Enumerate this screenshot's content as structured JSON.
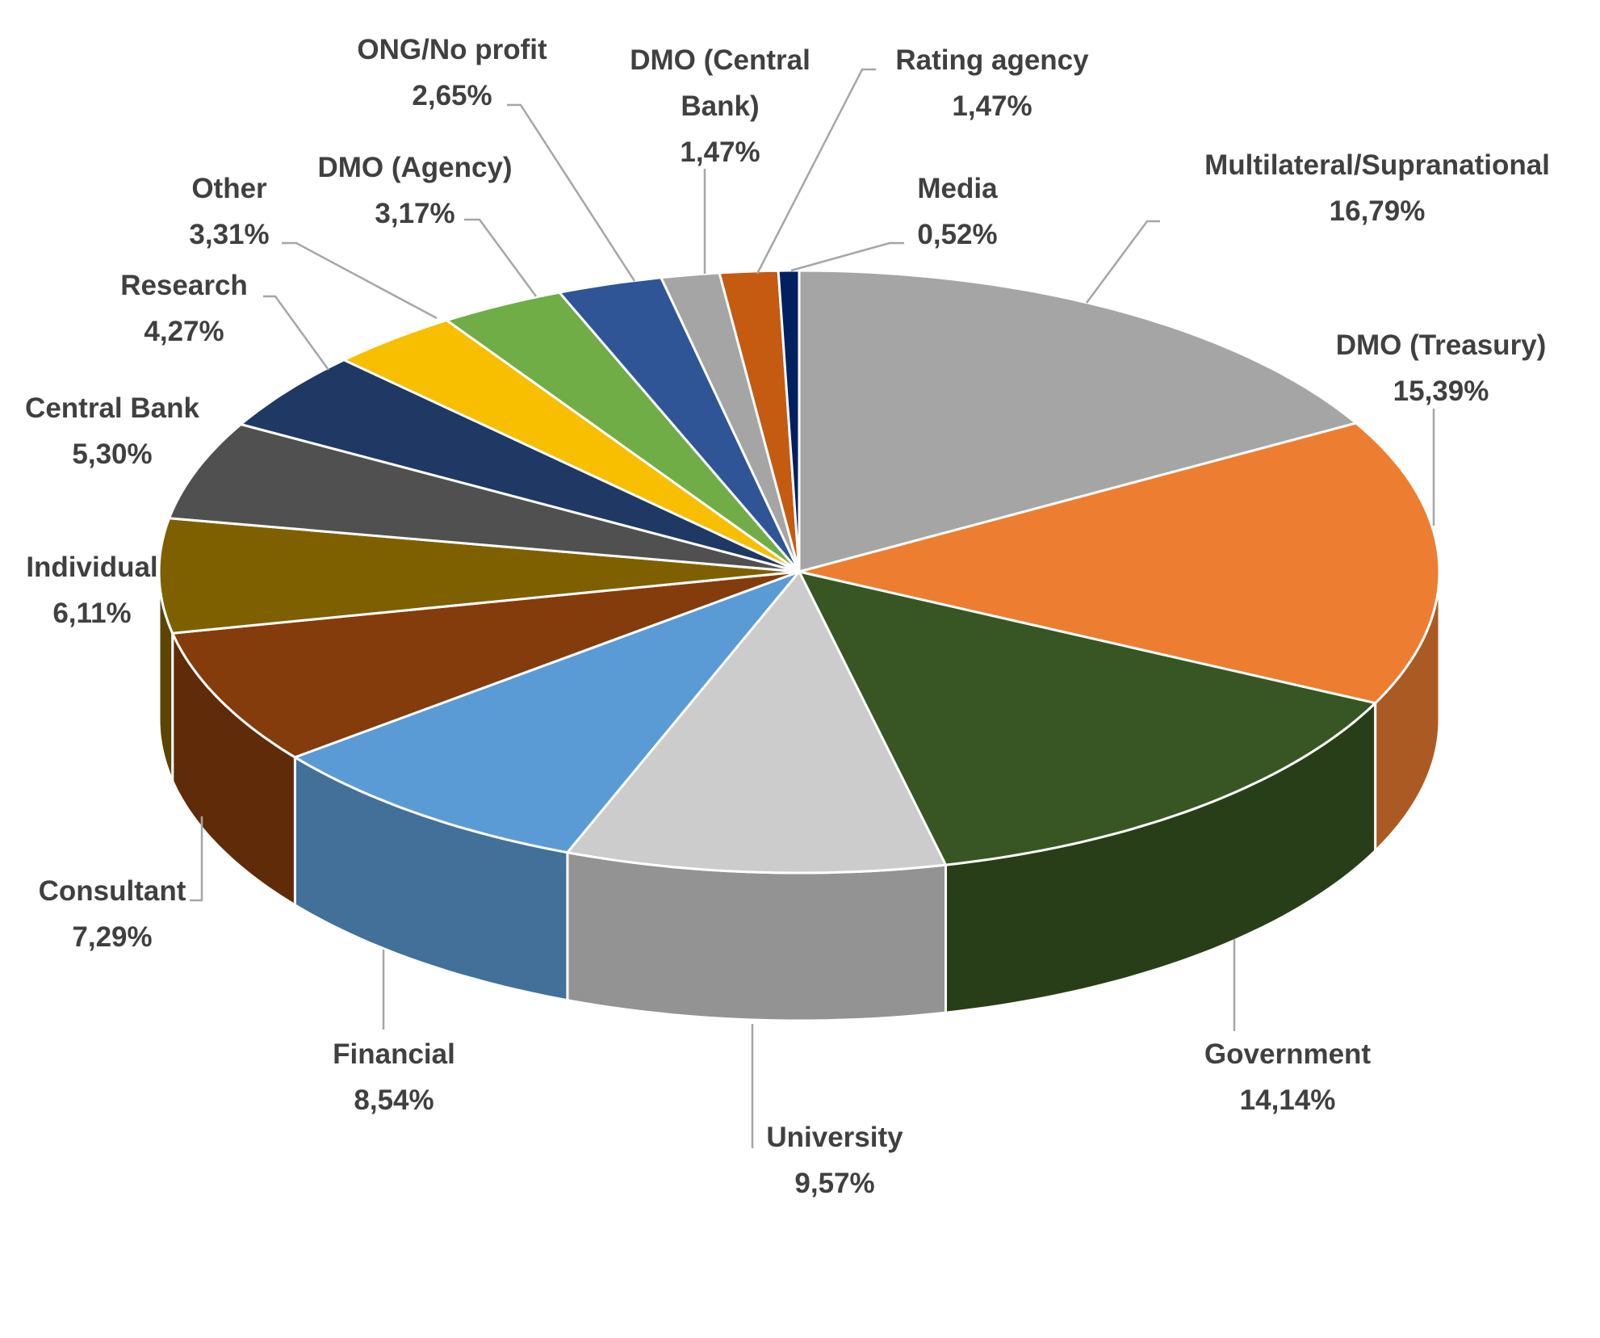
{
  "chart_data": {
    "type": "pie",
    "style": "3d",
    "start": "top",
    "direction": "clockwise",
    "categories": [
      "Multilateral/Supranational",
      "DMO (Treasury)",
      "Government",
      "University",
      "Financial",
      "Consultant",
      "Individual",
      "Central Bank",
      "Research",
      "Other",
      "DMO (Agency)",
      "ONG/No profit",
      "DMO (Central Bank)",
      "Rating agency",
      "Media"
    ],
    "values": [
      16.79,
      15.39,
      14.14,
      9.57,
      8.54,
      7.29,
      6.11,
      5.3,
      4.27,
      3.31,
      3.17,
      2.65,
      1.47,
      1.47,
      0.52
    ],
    "data_labels": [
      "16,79%",
      "15,39%",
      "14,14%",
      "9,57%",
      "8,54%",
      "7,29%",
      "6,11%",
      "5,30%",
      "4,27%",
      "3,31%",
      "3,17%",
      "2,65%",
      "1,47%",
      "1,47%",
      "0,52%"
    ],
    "label_lines": [
      [
        "Multilateral/Supranational",
        "16,79%"
      ],
      [
        "DMO (Treasury)",
        "15,39%"
      ],
      [
        "Government",
        "14,14%"
      ],
      [
        "University",
        "9,57%"
      ],
      [
        "Financial",
        "8,54%"
      ],
      [
        "Consultant",
        "7,29%"
      ],
      [
        "Individual",
        "6,11%"
      ],
      [
        "Central Bank",
        "5,30%"
      ],
      [
        "Research",
        "4,27%"
      ],
      [
        "Other",
        "3,31%"
      ],
      [
        "DMO (Agency)",
        "3,17%"
      ],
      [
        "ONG/No profit",
        "2,65%"
      ],
      [
        "DMO (Central",
        "Bank)",
        "1,47%"
      ],
      [
        "Rating agency",
        "1,47%"
      ],
      [
        "Media",
        "0,52%"
      ]
    ],
    "colors": [
      "#A5A5A5",
      "#ED7D31",
      "#375623",
      "#CCCCCC",
      "#5B9BD5",
      "#843C0C",
      "#7F6000",
      "#505050",
      "#1F3864",
      "#F8BE00",
      "#70AD47",
      "#2F5597",
      "#A5A5A5",
      "#C55A11",
      "#002060"
    ],
    "legend": "none"
  }
}
